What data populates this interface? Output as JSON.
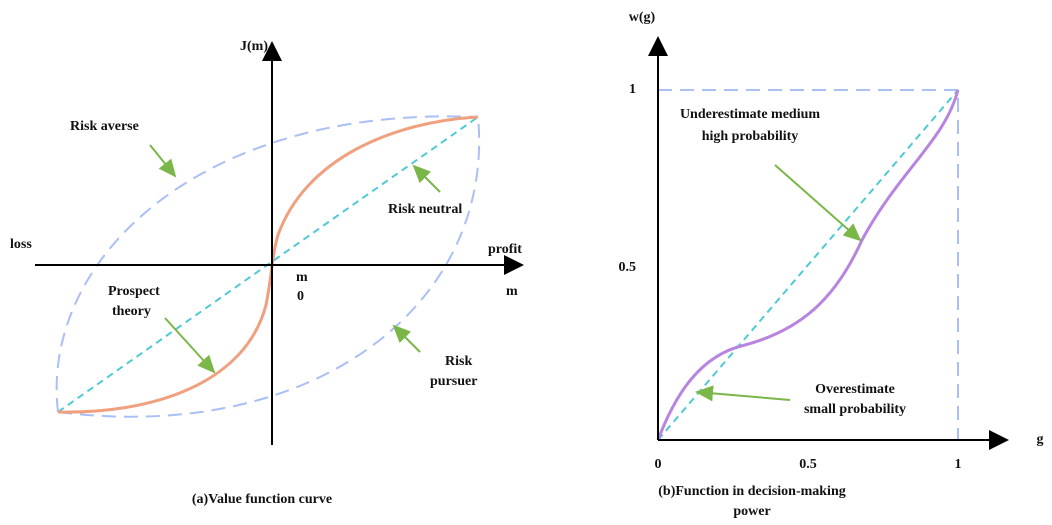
{
  "panel_a": {
    "y_axis_label": "J(m)",
    "left_label": "loss",
    "right_label": "profit",
    "x_axis_label": "m",
    "origin_labels": [
      "m",
      "0"
    ],
    "risk_averse": "Risk averse",
    "risk_neutral": "Risk neutral",
    "prospect_theory": [
      "Prospect",
      "theory"
    ],
    "risk_pursuer": [
      "Risk",
      "pursuer"
    ],
    "caption": "(a)Value function curve"
  },
  "panel_b": {
    "y_axis_label": "w(g)",
    "x_axis_label": "g",
    "y_ticks": [
      "1",
      "0.5"
    ],
    "x_ticks": [
      "0",
      "0.5",
      "1"
    ],
    "underestimate": [
      "Underestimate medium",
      "high probability"
    ],
    "overestimate": [
      "Overestimate",
      "small probability"
    ],
    "caption": [
      "(b)Function in decision-making",
      "power"
    ]
  }
}
